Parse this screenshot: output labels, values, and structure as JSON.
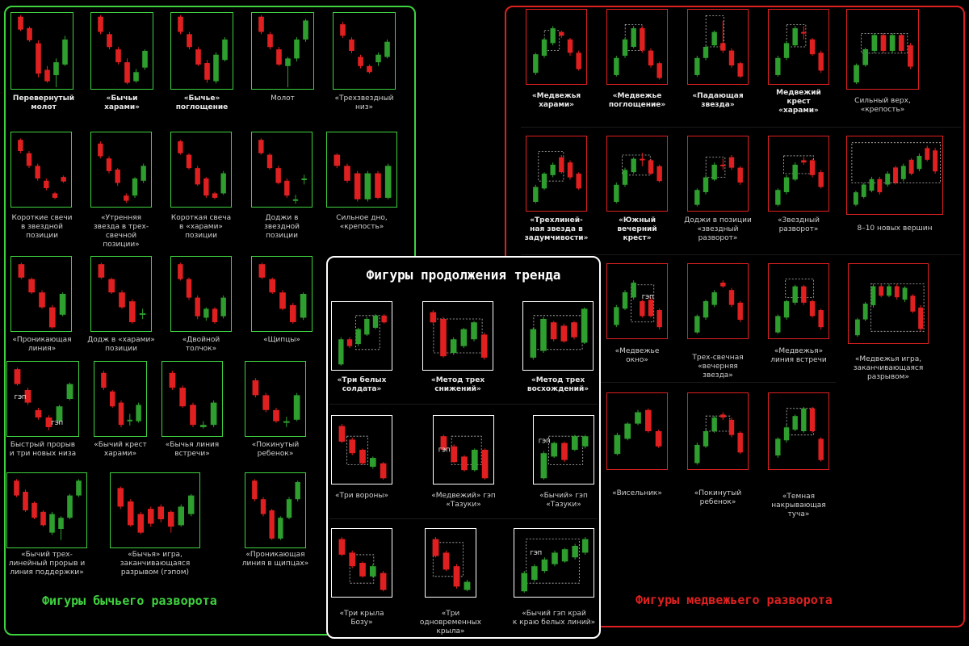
{
  "colors": {
    "bull": "#3fd23f",
    "bear": "#e02020",
    "white": "#ffffff",
    "bull_candle": "#2e9e2e",
    "bear_candle": "#e02020"
  },
  "titles": {
    "bullish": "Фигуры бычьего разворота",
    "bearish": "Фигуры медвежьего разворота",
    "continuation": "Фигуры продолжения тренда"
  },
  "gap_label": "ГЭП",
  "bullish": [
    {
      "caption": "Перевернутый\nмолот",
      "bold": true
    },
    {
      "caption": "«Бычьи\nхарами»",
      "bold": true
    },
    {
      "caption": "«Бычье»\nпоглощение",
      "bold": true
    },
    {
      "caption": "Молот",
      "bold": false
    },
    {
      "caption": "«Трехзвездный\nниз»",
      "bold": false
    },
    {
      "caption": "Короткие свечи\nв звездной\nпозиции",
      "bold": false
    },
    {
      "caption": "«Утренняя\nзвезда в трех-\nсвечной\nпозиции»",
      "bold": false
    },
    {
      "caption": "Короткая свеча\nв «харами»\nпозиции",
      "bold": false
    },
    {
      "caption": "Доджи в\nзвездной\nпозиции",
      "bold": false
    },
    {
      "caption": "Сильное дно,\n«крепость»",
      "bold": false
    },
    {
      "caption": "«Проникающая\nлиния»",
      "bold": false
    },
    {
      "caption": "Додж в «харами»\nпозиции",
      "bold": false
    },
    {
      "caption": "«Двойной\nтолчок»",
      "bold": false
    },
    {
      "caption": "«Щипцы»",
      "bold": false
    },
    {
      "caption": "Быстрый прорыв\nи три новых низа",
      "bold": false
    },
    {
      "caption": "«Бычий крест\nхарами»",
      "bold": false
    },
    {
      "caption": "«Бычья линия\nвстречи»",
      "bold": false
    },
    {
      "caption": "«Покинутый\nребенок»",
      "bold": false
    },
    {
      "caption": "«Бычий трех-\nлинейный прорыв и\nлиния поддержки»",
      "bold": false
    },
    {
      "caption": "«Бычья» игра,\nзаканчивающаяся\nразрывом (гэпом)",
      "bold": false
    },
    {
      "caption": "«Проникающая\nлиния в щипцах»",
      "bold": false
    }
  ],
  "bearish": [
    {
      "caption": "«Медвежья\nхарами»",
      "bold": true
    },
    {
      "caption": "«Медвежье\nпоглощение»",
      "bold": true
    },
    {
      "caption": "«Падающая\nзвезда»",
      "bold": true
    },
    {
      "caption": "Медвежий\nкрест\n«харами»",
      "bold": true
    },
    {
      "caption": "Сильный верх,\n«крепость»",
      "bold": false
    },
    {
      "caption": "«Трехлиней-\nная звезда в\nзадумчивости»",
      "bold": true
    },
    {
      "caption": "«Южный\nвечерний\nкрест»",
      "bold": true
    },
    {
      "caption": "Доджи в позиции\n«звездный\nразворот»",
      "bold": false
    },
    {
      "caption": "«Звездный\nразворот»",
      "bold": false
    },
    {
      "caption": "8–10 новых вершин",
      "bold": false
    },
    {
      "caption": "«Медвежье\nокно»",
      "bold": false
    },
    {
      "caption": "Трех-свечная\n«вечерняя\nзвезда»",
      "bold": false
    },
    {
      "caption": "«Медвежья»\nлиния встречи",
      "bold": false
    },
    {
      "caption": "«Медвежья игра,\nзаканчивающаяся\nразрывом»",
      "bold": false
    },
    {
      "caption": "«Висельник»",
      "bold": false
    },
    {
      "caption": "«Покинутый\nребенок»",
      "bold": false
    },
    {
      "caption": "«Темная\nнакрывающая\nтуча»",
      "bold": false
    }
  ],
  "continuation": [
    {
      "caption": "«Три белых\nсолдата»",
      "bold": true
    },
    {
      "caption": "«Метод трех\nснижений»",
      "bold": true
    },
    {
      "caption": "«Метод трех\nвосхождений»",
      "bold": true
    },
    {
      "caption": "«Три вороны»",
      "bold": false
    },
    {
      "caption": "«Медвежий» гэп\n«Тазуки»",
      "bold": false
    },
    {
      "caption": "«Бычий» гэп\n«Тазуки»",
      "bold": false
    },
    {
      "caption": "«Три крыла\nБозу»",
      "bold": false
    },
    {
      "caption": "«Три\nодновременных\nкрыла»",
      "bold": false
    },
    {
      "caption": "«Бычий гэп край\nк краю белых линий»",
      "bold": false
    }
  ]
}
